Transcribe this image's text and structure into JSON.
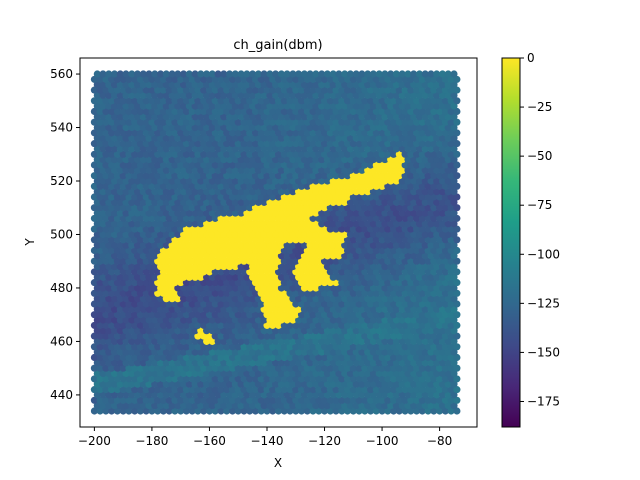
{
  "chart_data": {
    "type": "heatmap",
    "title": "ch_gain(dbm)",
    "xlabel": "X",
    "ylabel": "Y",
    "xlim": [
      -205,
      -67
    ],
    "ylim": [
      428,
      566
    ],
    "x_ticks": [
      -200,
      -180,
      -160,
      -140,
      -120,
      -100,
      -80
    ],
    "y_ticks": [
      440,
      460,
      480,
      500,
      520,
      540,
      560
    ],
    "x_tick_labels": [
      "−200",
      "−180",
      "−160",
      "−140",
      "−120",
      "−100",
      "−80"
    ],
    "y_tick_labels": [
      "440",
      "460",
      "480",
      "500",
      "520",
      "540",
      "560"
    ],
    "grid": false,
    "colormap": "viridis",
    "colorbar": {
      "range": [
        -188,
        0
      ],
      "ticks": [
        0,
        -25,
        -50,
        -75,
        -100,
        -125,
        -150,
        -175
      ],
      "tick_labels": [
        "0",
        "−25",
        "−50",
        "−75",
        "−100",
        "−125",
        "−150",
        "−175"
      ]
    },
    "grid_sampling": {
      "x_range": [
        -200,
        -74
      ],
      "y_range": [
        434,
        560
      ],
      "step": 2
    },
    "field_levels": {
      "background_east": -112,
      "background_west": -128,
      "dark_band": -158,
      "inside_building": 0
    },
    "building_polygons": [
      [
        [
          -176,
          494
        ],
        [
          -172,
          499
        ],
        [
          -168,
          502
        ],
        [
          -160,
          505
        ],
        [
          -152,
          507
        ],
        [
          -147,
          508
        ],
        [
          -145,
          510
        ],
        [
          -140,
          512
        ],
        [
          -132,
          515
        ],
        [
          -124,
          518
        ],
        [
          -114,
          521
        ],
        [
          -106,
          524
        ],
        [
          -100,
          527
        ],
        [
          -94,
          531
        ],
        [
          -92,
          531
        ],
        [
          -92,
          521
        ],
        [
          -98,
          518
        ],
        [
          -106,
          515
        ],
        [
          -111,
          514
        ],
        [
          -113,
          511
        ],
        [
          -118,
          510
        ],
        [
          -121,
          508
        ],
        [
          -124,
          506
        ],
        [
          -119,
          502
        ],
        [
          -112,
          501
        ],
        [
          -113,
          496
        ],
        [
          -114,
          493
        ],
        [
          -115,
          491
        ],
        [
          -118,
          490
        ],
        [
          -124,
          491
        ],
        [
          -127,
          495
        ],
        [
          -124,
          498
        ],
        [
          -132,
          497
        ],
        [
          -136,
          497
        ],
        [
          -142,
          494
        ],
        [
          -146,
          491
        ],
        [
          -150,
          488
        ],
        [
          -155,
          487
        ],
        [
          -158,
          487
        ],
        [
          -162,
          484
        ],
        [
          -166,
          483
        ],
        [
          -172,
          481
        ],
        [
          -176,
          480
        ],
        [
          -177,
          485
        ],
        [
          -178,
          490
        ]
      ],
      [
        [
          -147,
          490
        ],
        [
          -142,
          494
        ],
        [
          -136,
          497
        ],
        [
          -134,
          497
        ],
        [
          -135,
          493
        ],
        [
          -136,
          486
        ],
        [
          -135,
          480
        ],
        [
          -132,
          475
        ],
        [
          -127,
          472
        ],
        [
          -129,
          469
        ],
        [
          -134,
          466
        ],
        [
          -138,
          465
        ],
        [
          -140,
          466
        ],
        [
          -141,
          470
        ],
        [
          -142,
          476
        ],
        [
          -144,
          481
        ],
        [
          -146,
          485
        ]
      ],
      [
        [
          -127,
          495
        ],
        [
          -124,
          498
        ],
        [
          -121,
          496
        ],
        [
          -121,
          491
        ],
        [
          -118,
          485
        ],
        [
          -114,
          481
        ],
        [
          -121,
          480
        ],
        [
          -125,
          479
        ],
        [
          -129,
          481
        ],
        [
          -131,
          485
        ]
      ],
      [
        [
          -178,
          486
        ],
        [
          -173,
          482
        ],
        [
          -170,
          479
        ],
        [
          -170,
          476
        ],
        [
          -176,
          475
        ],
        [
          -178,
          478
        ]
      ],
      [
        [
          -163,
          466
        ],
        [
          -161,
          463
        ],
        [
          -158,
          462
        ],
        [
          -158,
          460
        ],
        [
          -162,
          460
        ],
        [
          -164,
          462
        ]
      ]
    ]
  }
}
